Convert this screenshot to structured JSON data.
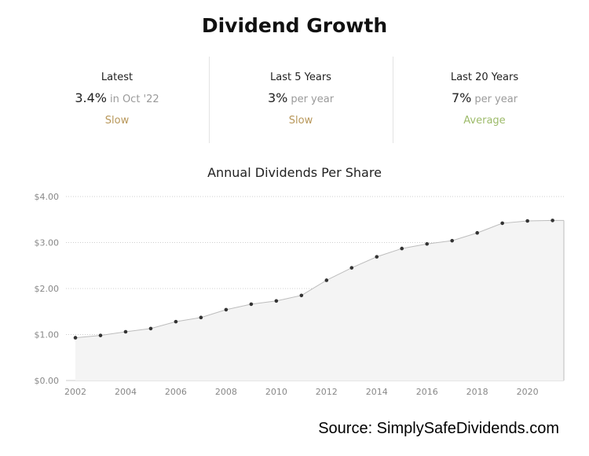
{
  "header": {
    "title": "Dividend Growth"
  },
  "stats": [
    {
      "label": "Latest",
      "value": "3.4%",
      "unit": "in Oct '22",
      "rating": "Slow",
      "rating_color": "#b8975a"
    },
    {
      "label": "Last 5 Years",
      "value": "3%",
      "unit": "per year",
      "rating": "Slow",
      "rating_color": "#b8975a"
    },
    {
      "label": "Last 20 Years",
      "value": "7%",
      "unit": "per year",
      "rating": "Average",
      "rating_color": "#9dbb6a"
    }
  ],
  "chart_data": {
    "type": "area",
    "title": "Annual Dividends Per Share",
    "x": [
      2002,
      2003,
      2004,
      2005,
      2006,
      2007,
      2008,
      2009,
      2010,
      2011,
      2012,
      2013,
      2014,
      2015,
      2016,
      2017,
      2018,
      2019,
      2020,
      2021
    ],
    "values": [
      0.93,
      0.98,
      1.06,
      1.13,
      1.28,
      1.37,
      1.54,
      1.66,
      1.73,
      1.85,
      2.18,
      2.45,
      2.69,
      2.87,
      2.97,
      3.04,
      3.21,
      3.42,
      3.47,
      3.48
    ],
    "xticks": [
      "2002",
      "2004",
      "2006",
      "2008",
      "2010",
      "2012",
      "2014",
      "2016",
      "2018",
      "2020"
    ],
    "yticks": [
      "$0.00",
      "$1.00",
      "$2.00",
      "$3.00",
      "$4.00"
    ],
    "ylim": [
      0,
      4
    ],
    "xlim": [
      2002,
      2021
    ],
    "grid": true,
    "line_color": "#bdbdbd",
    "fill_color": "#f4f4f4",
    "point_color": "#333333"
  },
  "footer": {
    "source": "Source: SimplySafeDividends.com"
  }
}
